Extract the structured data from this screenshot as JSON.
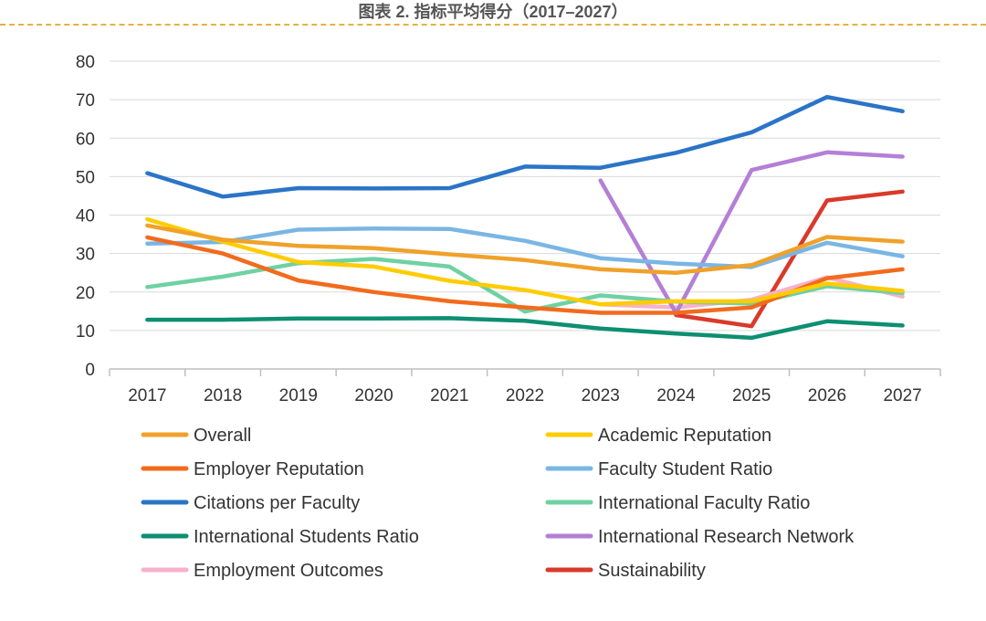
{
  "header": {
    "title": "图表 2. 指标平均得分（2017–2027）",
    "rule_color": "#e6b23c"
  },
  "chart_data": {
    "type": "line",
    "title": "图表 2. 指标平均得分（2017–2027）",
    "xlabel": "",
    "ylabel": "",
    "ylim": [
      0,
      80
    ],
    "yticks": [
      0,
      10,
      20,
      30,
      40,
      50,
      60,
      70,
      80
    ],
    "grid": true,
    "legend_position": "bottom",
    "categories": [
      "2017",
      "2018",
      "2019",
      "2020",
      "2021",
      "2022",
      "2023",
      "2024",
      "2025",
      "2026",
      "2027"
    ],
    "series": [
      {
        "name": "Overall",
        "color": "#f0a12a",
        "values": [
          37.3,
          33.6,
          32.0,
          31.4,
          29.8,
          28.3,
          25.9,
          25.0,
          27.0,
          34.3,
          33.1
        ]
      },
      {
        "name": "Academic Reputation",
        "color": "#ffcc00",
        "values": [
          38.9,
          33.1,
          27.8,
          26.6,
          22.9,
          20.5,
          16.8,
          17.6,
          17.6,
          22.2,
          20.3
        ]
      },
      {
        "name": "Employer Reputation",
        "color": "#f26b1d",
        "values": [
          34.2,
          30.0,
          23.0,
          20.0,
          17.6,
          16.0,
          14.6,
          14.6,
          16.0,
          23.6,
          25.9
        ]
      },
      {
        "name": "Faculty Student Ratio",
        "color": "#7ab6e4",
        "values": [
          32.6,
          33.0,
          36.2,
          36.5,
          36.4,
          33.3,
          28.8,
          27.4,
          26.5,
          32.8,
          29.3
        ]
      },
      {
        "name": "Citations per Faculty",
        "color": "#2b74c7",
        "values": [
          50.9,
          44.8,
          47.0,
          46.9,
          47.0,
          52.6,
          52.3,
          56.2,
          61.5,
          70.7,
          67.0
        ]
      },
      {
        "name": "International Faculty Ratio",
        "color": "#6fd1a2",
        "values": [
          21.3,
          24.0,
          27.5,
          28.6,
          26.6,
          14.9,
          19.1,
          17.5,
          17.0,
          21.5,
          19.7
        ]
      },
      {
        "name": "International Students Ratio",
        "color": "#0d8f72",
        "values": [
          12.8,
          12.8,
          13.1,
          13.1,
          13.2,
          12.5,
          10.5,
          9.2,
          8.1,
          12.4,
          11.3
        ]
      },
      {
        "name": "International Research Network",
        "color": "#b47fd6",
        "values": [
          null,
          null,
          null,
          null,
          null,
          null,
          49.0,
          14.5,
          51.7,
          56.3,
          55.2
        ]
      },
      {
        "name": "Employment Outcomes",
        "color": "#f7b1cc",
        "values": [
          null,
          null,
          null,
          null,
          null,
          null,
          16.8,
          16.0,
          18.0,
          23.8,
          18.8
        ]
      },
      {
        "name": "Sustainability",
        "color": "#d93a2a",
        "values": [
          null,
          null,
          null,
          null,
          null,
          null,
          null,
          14.0,
          11.1,
          43.8,
          46.1
        ]
      }
    ]
  }
}
